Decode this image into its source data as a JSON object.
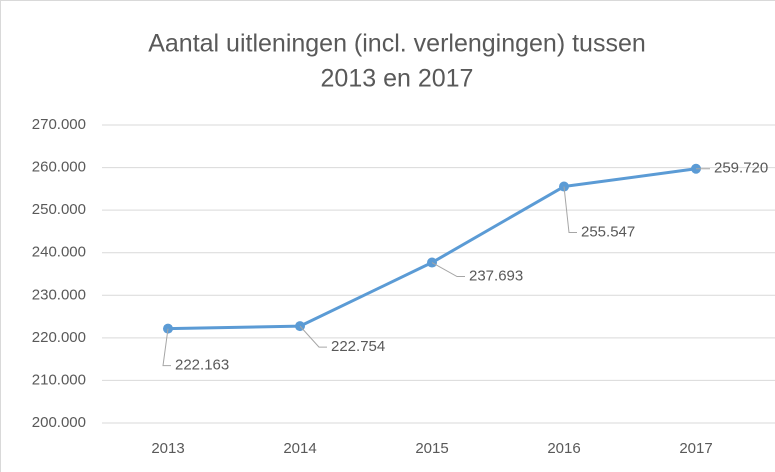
{
  "chart_data": {
    "type": "line",
    "title": [
      "Aantal uitleningen (incl. verlengingen) tussen",
      "2013 en 2017"
    ],
    "categories": [
      "2013",
      "2014",
      "2015",
      "2016",
      "2017"
    ],
    "series": [
      {
        "color": "#5b9bd5",
        "values": [
          222163,
          222754,
          237693,
          255547,
          259720
        ],
        "value_labels": [
          "222.163",
          "222.754",
          "237.693",
          "255.547",
          "259.720"
        ]
      }
    ],
    "ylim": [
      200000,
      270000
    ],
    "yticks": [
      {
        "value": 200000,
        "label": "200.000"
      },
      {
        "value": 210000,
        "label": "210.000"
      },
      {
        "value": 220000,
        "label": "220.000"
      },
      {
        "value": 230000,
        "label": "230.000"
      },
      {
        "value": 240000,
        "label": "240.000"
      },
      {
        "value": 250000,
        "label": "250.000"
      },
      {
        "value": 260000,
        "label": "260.000"
      },
      {
        "value": 270000,
        "label": "270.000"
      }
    ],
    "grid": true
  }
}
